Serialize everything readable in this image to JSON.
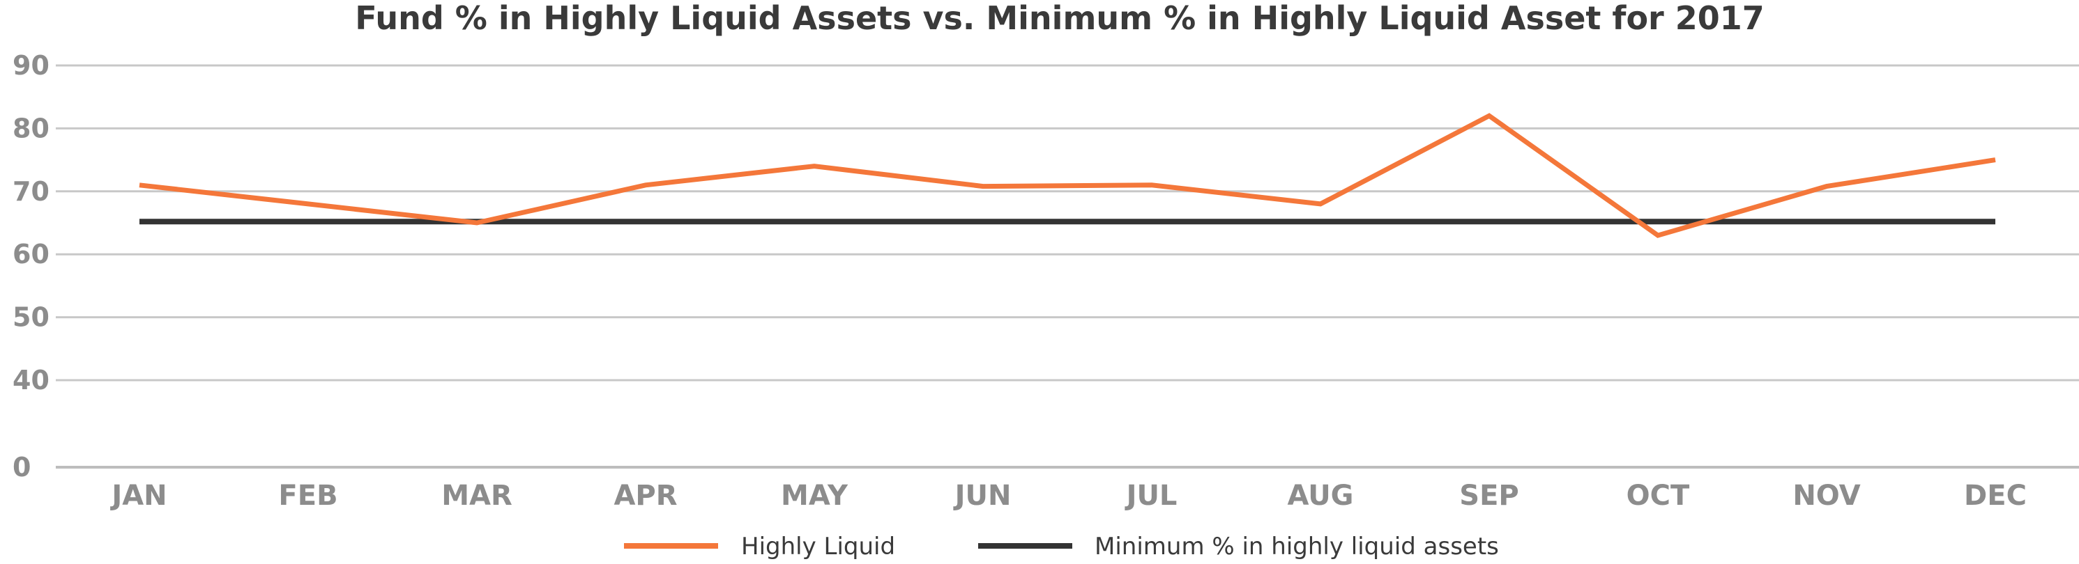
{
  "chart_data": {
    "type": "line",
    "title": "Fund % in Highly Liquid Assets vs. Minimum % in Highly Liquid Asset for 2017",
    "xlabel": "",
    "ylabel": "",
    "categories": [
      "JAN",
      "FEB",
      "MAR",
      "APR",
      "MAY",
      "JUN",
      "JUL",
      "AUG",
      "SEP",
      "OCT",
      "NOV",
      "DEC"
    ],
    "y_ticks": [
      "0",
      "40",
      "50",
      "60",
      "70",
      "80",
      "90"
    ],
    "grid": true,
    "legend_position": "bottom",
    "series": [
      {
        "name": "Highly Liquid",
        "color": "#f4773a",
        "values": [
          71,
          68,
          65,
          71,
          74,
          70.8,
          71,
          68,
          82,
          63,
          70.8,
          75
        ]
      },
      {
        "name": "Minimum % in highly liquid assets",
        "color": "#333333",
        "values": [
          65.2,
          65.2,
          65.2,
          65.2,
          65.2,
          65.2,
          65.2,
          65.2,
          65.2,
          65.2,
          65.2,
          65.2
        ]
      }
    ]
  }
}
